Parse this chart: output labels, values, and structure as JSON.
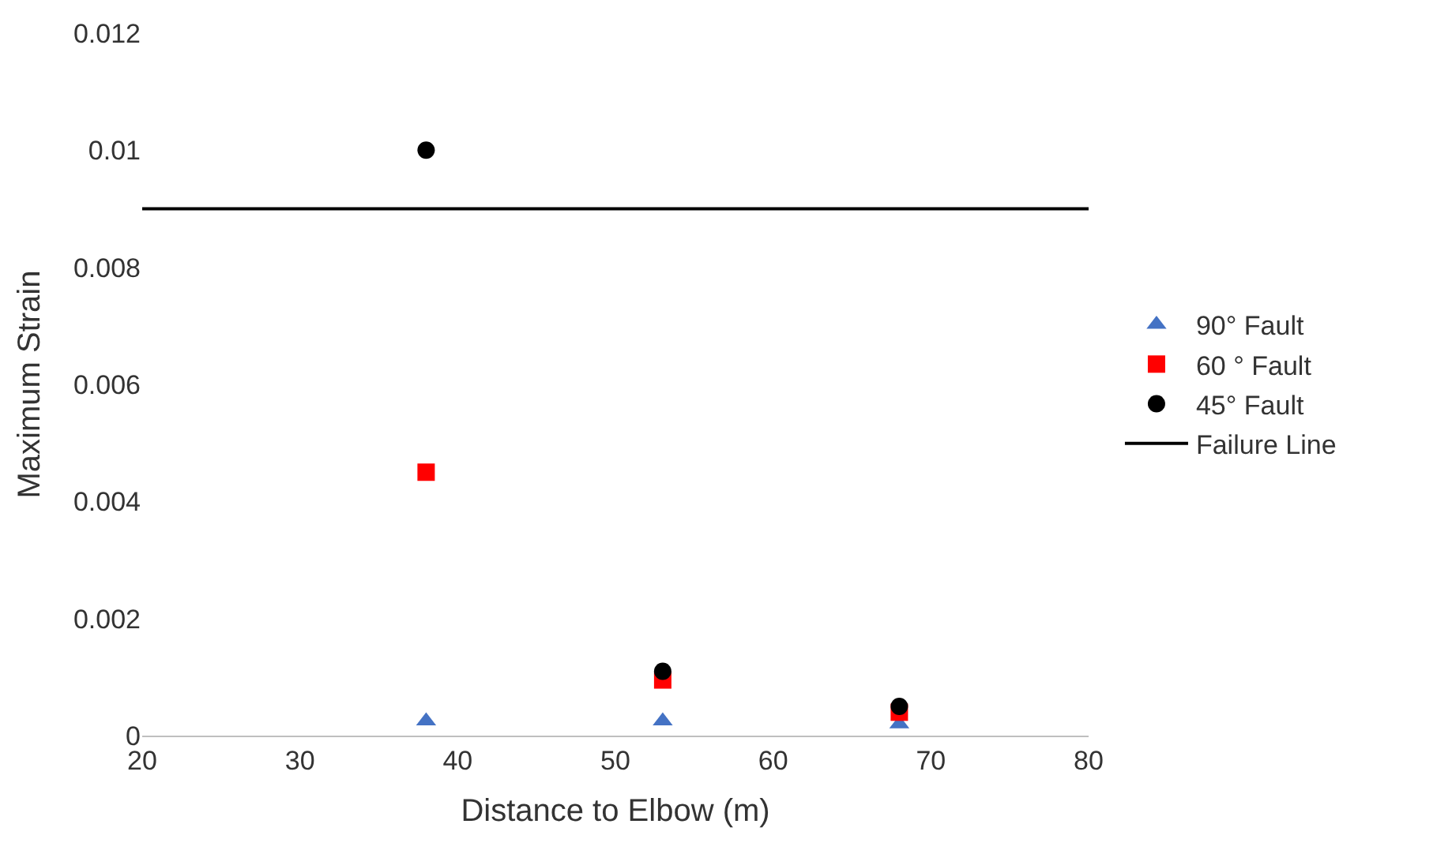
{
  "chart_data": {
    "type": "scatter",
    "xlabel": "Distance to Elbow (m)",
    "ylabel": "Maximum Strain",
    "x": [
      38,
      53,
      68
    ],
    "series": [
      {
        "name": "90° Fault",
        "color": "#4472c4",
        "marker": "triangle",
        "values": [
          0.00025,
          0.00025,
          0.0002
        ]
      },
      {
        "name": "60 ° Fault",
        "color": "#ff0000",
        "marker": "square",
        "values": [
          0.0045,
          0.00095,
          0.0004
        ]
      },
      {
        "name": "45° Fault",
        "color": "#000000",
        "marker": "circle",
        "values": [
          0.01,
          0.0011,
          0.0005
        ]
      }
    ],
    "ref_lines": [
      {
        "axis": "y",
        "value": 0.009,
        "label": "Failure Line",
        "color": "#000000",
        "line_style": "solid"
      }
    ],
    "xlim": [
      20,
      80
    ],
    "xticks": [
      20,
      30,
      40,
      50,
      60,
      70,
      80
    ],
    "ylim": [
      0,
      0.012
    ],
    "yticks": [
      0,
      0.002,
      0.004,
      0.006,
      0.008,
      0.01,
      0.012
    ],
    "legend": "right"
  }
}
